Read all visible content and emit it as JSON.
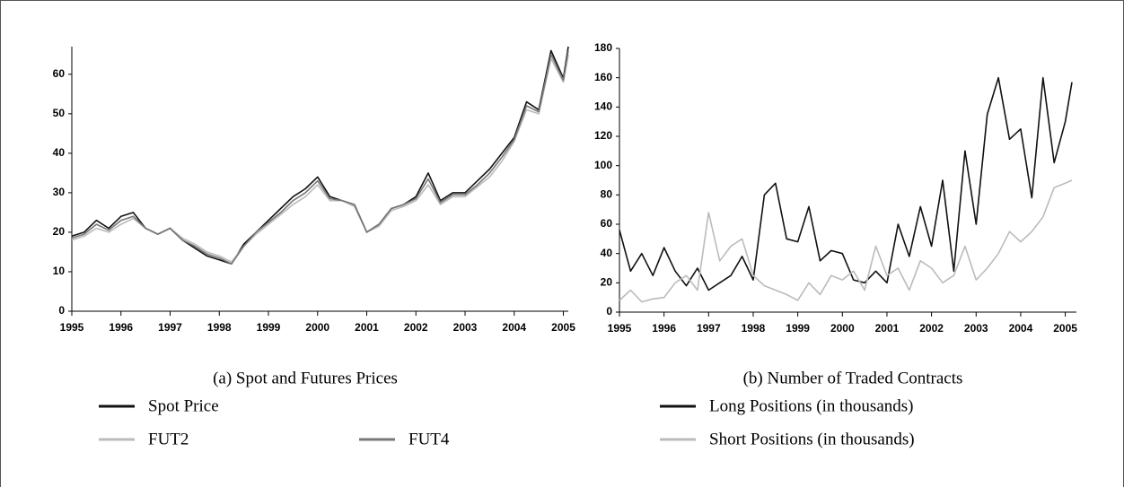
{
  "chart_data": [
    {
      "type": "line",
      "title": "(a) Spot and Futures Prices",
      "x": [
        1995,
        1995.25,
        1995.5,
        1995.75,
        1996,
        1996.25,
        1996.5,
        1996.75,
        1997,
        1997.25,
        1997.5,
        1997.75,
        1998,
        1998.25,
        1998.5,
        1998.75,
        1999,
        1999.25,
        1999.5,
        1999.75,
        2000,
        2000.25,
        2000.5,
        2000.75,
        2001,
        2001.25,
        2001.5,
        2001.75,
        2002,
        2002.25,
        2002.5,
        2002.75,
        2003,
        2003.25,
        2003.5,
        2003.75,
        2004,
        2004.25,
        2004.5,
        2004.75,
        2005,
        2005.1
      ],
      "xlim": [
        1995,
        2005.1
      ],
      "xticks": [
        1995,
        1996,
        1997,
        1998,
        1999,
        2000,
        2001,
        2002,
        2003,
        2004,
        2005
      ],
      "ylim": [
        0,
        67
      ],
      "yticks": [
        0,
        10,
        20,
        30,
        40,
        50,
        60
      ],
      "series": [
        {
          "name": "Spot Price",
          "color": "#111111",
          "values": [
            19,
            20,
            23,
            21,
            24,
            25,
            21,
            19.5,
            21,
            18,
            16,
            14,
            13,
            12,
            17,
            20,
            23,
            26,
            29,
            31,
            34,
            29,
            28,
            27,
            20,
            22,
            26,
            27,
            29,
            35,
            28,
            30,
            30,
            33,
            36,
            40,
            44,
            53,
            51,
            66,
            59,
            67
          ]
        },
        {
          "name": "FUT2",
          "color": "#bbbbbb",
          "values": [
            18,
            19,
            21,
            20,
            22,
            23.5,
            21,
            19.5,
            21,
            18.5,
            17,
            15,
            14,
            12.5,
            16.5,
            19.5,
            22,
            24.5,
            27,
            29,
            32,
            28,
            28,
            26.5,
            20,
            21.5,
            25.5,
            26.5,
            28,
            32,
            27,
            29,
            29,
            31.5,
            34,
            38,
            43,
            51,
            50,
            64,
            58,
            65
          ]
        },
        {
          "name": "FUT4",
          "color": "#777777",
          "values": [
            18.5,
            19.5,
            22,
            20.5,
            23,
            24,
            21,
            19.5,
            21,
            18,
            16.5,
            14.5,
            13.5,
            12,
            16.5,
            20,
            22.5,
            25,
            28,
            30,
            33,
            28.5,
            28,
            27,
            20,
            22,
            26,
            27,
            28.5,
            33.5,
            27.5,
            29.5,
            29.5,
            32,
            35,
            39,
            43.5,
            52,
            50.5,
            65,
            58.5,
            66
          ]
        }
      ]
    },
    {
      "type": "line",
      "title": "(b) Number of Traded Contracts",
      "x": [
        1995,
        1995.25,
        1995.5,
        1995.75,
        1996,
        1996.25,
        1996.5,
        1996.75,
        1997,
        1997.25,
        1997.5,
        1997.75,
        1998,
        1998.25,
        1998.5,
        1998.75,
        1999,
        1999.25,
        1999.5,
        1999.75,
        2000,
        2000.25,
        2000.5,
        2000.75,
        2001,
        2001.25,
        2001.5,
        2001.75,
        2002,
        2002.25,
        2002.5,
        2002.75,
        2003,
        2003.25,
        2003.5,
        2003.75,
        2004,
        2004.25,
        2004.5,
        2004.75,
        2005,
        2005.15
      ],
      "xlim": [
        1995,
        2005.25
      ],
      "xticks": [
        1995,
        1996,
        1997,
        1998,
        1999,
        2000,
        2001,
        2002,
        2003,
        2004,
        2005
      ],
      "ylim": [
        0,
        180
      ],
      "yticks": [
        0,
        20,
        40,
        60,
        80,
        100,
        120,
        140,
        160,
        180
      ],
      "series": [
        {
          "name": "Long Positions (in thousands)",
          "color": "#111111",
          "values": [
            56,
            28,
            40,
            25,
            44,
            28,
            18,
            30,
            15,
            20,
            25,
            38,
            22,
            80,
            88,
            50,
            48,
            72,
            35,
            42,
            40,
            22,
            20,
            28,
            20,
            60,
            38,
            72,
            45,
            90,
            28,
            110,
            60,
            135,
            160,
            118,
            125,
            78,
            160,
            102,
            130,
            157
          ]
        },
        {
          "name": "Short Positions (in thousands)",
          "color": "#bbbbbb",
          "values": [
            8,
            15,
            7,
            9,
            10,
            20,
            25,
            15,
            68,
            35,
            45,
            50,
            25,
            18,
            15,
            12,
            8,
            20,
            12,
            25,
            22,
            28,
            15,
            45,
            25,
            30,
            15,
            35,
            30,
            20,
            25,
            45,
            22,
            30,
            40,
            55,
            48,
            55,
            65,
            85,
            88,
            90
          ]
        }
      ]
    }
  ]
}
